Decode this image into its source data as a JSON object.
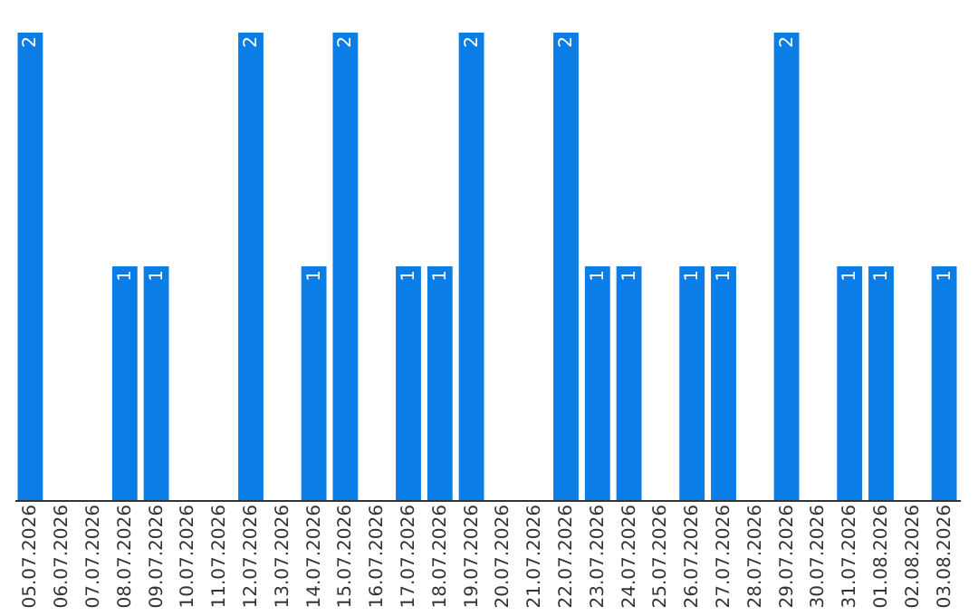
{
  "chart_data": {
    "type": "bar",
    "categories": [
      "05.07.2026",
      "06.07.2026",
      "07.07.2026",
      "08.07.2026",
      "09.07.2026",
      "10.07.2026",
      "11.07.2026",
      "12.07.2026",
      "13.07.2026",
      "14.07.2026",
      "15.07.2026",
      "16.07.2026",
      "17.07.2026",
      "18.07.2026",
      "19.07.2026",
      "20.07.2026",
      "21.07.2026",
      "22.07.2026",
      "23.07.2026",
      "24.07.2026",
      "25.07.2026",
      "26.07.2026",
      "27.07.2026",
      "28.07.2026",
      "29.07.2026",
      "30.07.2026",
      "31.07.2026",
      "01.08.2026",
      "02.08.2026",
      "03.08.2026"
    ],
    "values": [
      2,
      0,
      0,
      1,
      1,
      0,
      0,
      2,
      0,
      1,
      2,
      0,
      1,
      1,
      2,
      0,
      0,
      2,
      1,
      1,
      0,
      1,
      1,
      0,
      2,
      0,
      1,
      1,
      0,
      1
    ],
    "value_labels": [
      "2",
      null,
      null,
      "1",
      "1",
      null,
      null,
      "2",
      null,
      "1",
      "2",
      null,
      "1",
      "1",
      "2",
      null,
      null,
      "2",
      "1",
      "1",
      null,
      "1",
      "1",
      null,
      "2",
      null,
      "1",
      "1",
      null,
      "1"
    ],
    "color": "#0a7de6",
    "tick_labels": "x"
  }
}
